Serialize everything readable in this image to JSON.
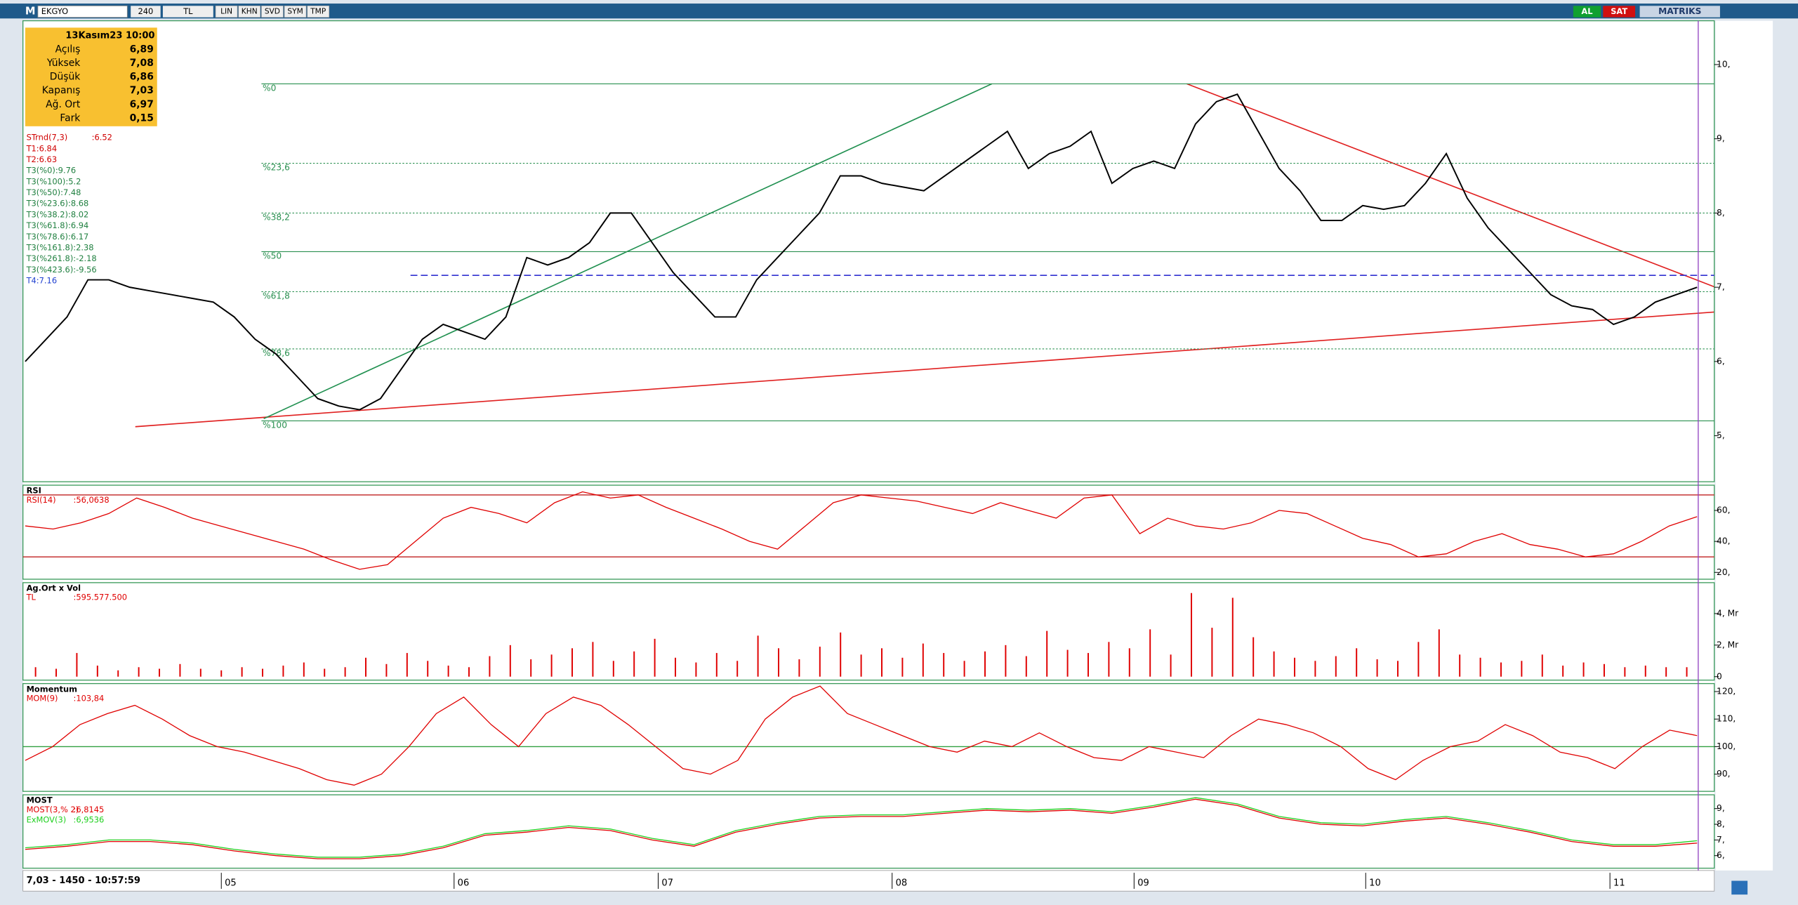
{
  "toolbar": {
    "logo": "M",
    "symbol": "EKGYO",
    "period": "240",
    "currency": "TL",
    "buttons": [
      "LIN",
      "KHN",
      "SVD",
      "SYM",
      "TMP"
    ],
    "buy": "AL",
    "sell": "SAT",
    "brand": "MATRIKS"
  },
  "info_box": {
    "date": "13Kasım23 10:00",
    "rows": [
      [
        "Açılış",
        "6,89"
      ],
      [
        "Yüksek",
        "7,08"
      ],
      [
        "Düşük",
        "6,86"
      ],
      [
        "Kapanış",
        "7,03"
      ],
      [
        "Ağ. Ort",
        "6,97"
      ],
      [
        "Fark",
        "0,15"
      ]
    ]
  },
  "indicators": [
    {
      "name": "STrnd(7,3)",
      "value": ":6.52",
      "color": "#d00000"
    },
    {
      "name": "T1:6.84",
      "color": "#d00000"
    },
    {
      "name": "T2:6.63",
      "color": "#d00000"
    },
    {
      "name": "T3(%0):9.76",
      "color": "#208040"
    },
    {
      "name": "T3(%100):5.2",
      "color": "#208040"
    },
    {
      "name": "T3(%50):7.48",
      "color": "#208040"
    },
    {
      "name": "T3(%23.6):8.68",
      "color": "#208040"
    },
    {
      "name": "T3(%38.2):8.02",
      "color": "#208040"
    },
    {
      "name": "T3(%61.8):6.94",
      "color": "#208040"
    },
    {
      "name": "T3(%78.6):6.17",
      "color": "#208040"
    },
    {
      "name": "T3(%161.8):2.38",
      "color": "#208040"
    },
    {
      "name": "T3(%261.8):-2.18",
      "color": "#208040"
    },
    {
      "name": "T3(%423.6):-9.56",
      "color": "#208040"
    },
    {
      "name": "T4:7.16",
      "color": "#2040d0"
    }
  ],
  "status": "7,03 - 1450 - 10:57:59",
  "months": [
    "05",
    "06",
    "07",
    "08",
    "09",
    "10",
    "11"
  ],
  "chart_data": [
    {
      "type": "line",
      "ylim": [
        4.38,
        10.59
      ],
      "yticks": [
        {
          "value": 5,
          "label": "5,"
        },
        {
          "value": 6,
          "label": "6,"
        },
        {
          "value": 7,
          "label": "7,"
        },
        {
          "value": 8,
          "label": "8,"
        },
        {
          "value": 9,
          "label": "9,"
        },
        {
          "value": 10,
          "label": "10,"
        }
      ],
      "fib_levels": [
        {
          "label": "%0",
          "value": 9.74
        },
        {
          "label": "%23,6",
          "value": 8.67
        },
        {
          "label": "%38,2",
          "value": 8.0
        },
        {
          "label": "%50",
          "value": 7.48
        },
        {
          "label": "%61,8",
          "value": 6.94
        },
        {
          "label": "%78,6",
          "value": 6.17
        },
        {
          "label": "%100",
          "value": 5.2
        }
      ],
      "hline": {
        "value": 7.16,
        "color": "#3030d0"
      },
      "series": [
        {
          "name": "EKGYO",
          "color": "#000000",
          "values": [
            6.0,
            6.3,
            6.6,
            7.1,
            7.1,
            7.0,
            6.95,
            6.9,
            6.85,
            6.8,
            6.6,
            6.3,
            6.1,
            5.8,
            5.5,
            5.4,
            5.35,
            5.5,
            5.9,
            6.3,
            6.5,
            6.4,
            6.3,
            6.6,
            7.4,
            7.3,
            7.4,
            7.6,
            8.0,
            8.0,
            7.6,
            7.2,
            6.9,
            6.6,
            6.6,
            7.1,
            7.4,
            7.7,
            8.0,
            8.5,
            8.5,
            8.4,
            8.35,
            8.3,
            8.5,
            8.7,
            8.9,
            9.1,
            8.6,
            8.8,
            8.9,
            9.1,
            8.4,
            8.6,
            8.7,
            8.6,
            9.2,
            9.5,
            9.6,
            9.1,
            8.6,
            8.3,
            7.9,
            7.9,
            8.1,
            8.05,
            8.1,
            8.4,
            8.8,
            8.2,
            7.8,
            7.5,
            7.2,
            6.9,
            6.75,
            6.7,
            6.5,
            6.6,
            6.8,
            6.9,
            7.0
          ]
        }
      ]
    },
    {
      "type": "line",
      "title": "RSI",
      "ylim": [
        15.6,
        76.3
      ],
      "yticks": [
        {
          "value": 20,
          "label": "20,"
        },
        {
          "value": 40,
          "label": "40,"
        },
        {
          "value": 60,
          "label": "60,"
        }
      ],
      "hlines": [
        70,
        30
      ],
      "series": [
        {
          "name": "RSI(14)",
          "value_text": ":56,0638",
          "color": "#e00000",
          "values": [
            50,
            48,
            52,
            58,
            68,
            62,
            55,
            50,
            45,
            40,
            35,
            28,
            22,
            25,
            40,
            55,
            62,
            58,
            52,
            65,
            72,
            68,
            70,
            62,
            55,
            48,
            40,
            35,
            50,
            65,
            70,
            68,
            66,
            62,
            58,
            65,
            60,
            55,
            68,
            70,
            45,
            55,
            50,
            48,
            52,
            60,
            58,
            50,
            42,
            38,
            30,
            32,
            40,
            45,
            38,
            35,
            30,
            32,
            40,
            50,
            56
          ]
        }
      ]
    },
    {
      "type": "bar",
      "title": "Ag.Ort x Vol",
      "ylim": [
        -0.22,
        5.96
      ],
      "yticks": [
        0,
        {
          "value": 2,
          "label": "2, Mr"
        },
        {
          "value": 4,
          "label": "4, Mr"
        }
      ],
      "series": [
        {
          "name": "TL",
          "value_text": ":595.577.500",
          "color": "#e00000",
          "values": [
            0.6,
            0.5,
            1.5,
            0.7,
            0.4,
            0.6,
            0.5,
            0.8,
            0.5,
            0.4,
            0.6,
            0.5,
            0.7,
            0.9,
            0.5,
            0.6,
            1.2,
            0.8,
            1.5,
            1.0,
            0.7,
            0.6,
            1.3,
            2.0,
            1.1,
            1.4,
            1.8,
            2.2,
            1.0,
            1.6,
            2.4,
            1.2,
            0.9,
            1.5,
            1.0,
            2.6,
            1.8,
            1.1,
            1.9,
            2.8,
            1.4,
            1.8,
            1.2,
            2.1,
            1.5,
            1.0,
            1.6,
            2.0,
            1.3,
            2.9,
            1.7,
            1.5,
            2.2,
            1.8,
            3.0,
            1.4,
            5.3,
            3.1,
            5.0,
            2.5,
            1.6,
            1.2,
            1.0,
            1.3,
            1.8,
            1.1,
            1.0,
            2.2,
            3.0,
            1.4,
            1.2,
            0.9,
            1.0,
            1.4,
            0.7,
            0.9,
            0.8,
            0.6,
            0.7,
            0.6,
            0.6
          ]
        }
      ]
    },
    {
      "type": "line",
      "title": "Momentum",
      "ylim": [
        83.75,
        122.9
      ],
      "yticks": [
        {
          "value": 90,
          "label": "90,"
        },
        {
          "value": 100,
          "label": "100,"
        },
        {
          "value": 110,
          "label": "110,"
        },
        {
          "value": 120,
          "label": "120,"
        }
      ],
      "hlines": [
        100
      ],
      "series": [
        {
          "name": "MOM(9)",
          "value_text": ":103,84",
          "color": "#e00000",
          "values": [
            95,
            100,
            108,
            112,
            115,
            110,
            104,
            100,
            98,
            95,
            92,
            88,
            86,
            90,
            100,
            112,
            118,
            108,
            100,
            112,
            118,
            115,
            108,
            100,
            92,
            90,
            95,
            110,
            118,
            122,
            112,
            108,
            104,
            100,
            98,
            102,
            100,
            105,
            100,
            96,
            95,
            100,
            98,
            96,
            104,
            110,
            108,
            105,
            100,
            92,
            88,
            95,
            100,
            102,
            108,
            104,
            98,
            96,
            92,
            100,
            106,
            104
          ]
        }
      ]
    },
    {
      "type": "line",
      "title": "MOST",
      "ylim": [
        5.2,
        9.88
      ],
      "yticks": [
        {
          "value": 6,
          "label": "6,"
        },
        {
          "value": 7,
          "label": "7,"
        },
        {
          "value": 8,
          "label": "8,"
        },
        {
          "value": 9,
          "label": "9,"
        }
      ],
      "series": [
        {
          "name": "MOST(3,% 2)",
          "value_text": ":6,8145",
          "color": "#e00000",
          "values": [
            6.4,
            6.6,
            6.9,
            6.9,
            6.7,
            6.3,
            6.0,
            5.8,
            5.8,
            6.0,
            6.5,
            7.3,
            7.5,
            7.8,
            7.6,
            7.0,
            6.6,
            7.5,
            8.0,
            8.4,
            8.5,
            8.5,
            8.7,
            8.9,
            8.8,
            8.9,
            8.7,
            9.1,
            9.6,
            9.2,
            8.4,
            8.0,
            7.9,
            8.2,
            8.4,
            8.0,
            7.5,
            6.9,
            6.6,
            6.6,
            6.8
          ]
        },
        {
          "name": "ExMOV(3)",
          "value_text": ":6,9536",
          "color": "#20d020",
          "values": [
            6.5,
            6.7,
            7.0,
            7.0,
            6.8,
            6.4,
            6.1,
            5.9,
            5.9,
            6.1,
            6.6,
            7.4,
            7.6,
            7.9,
            7.7,
            7.1,
            6.7,
            7.6,
            8.1,
            8.5,
            8.6,
            8.6,
            8.8,
            9.0,
            8.9,
            9.0,
            8.8,
            9.2,
            9.7,
            9.3,
            8.5,
            8.1,
            8.0,
            8.3,
            8.5,
            8.1,
            7.6,
            7.0,
            6.7,
            6.7,
            6.95
          ]
        }
      ]
    }
  ]
}
